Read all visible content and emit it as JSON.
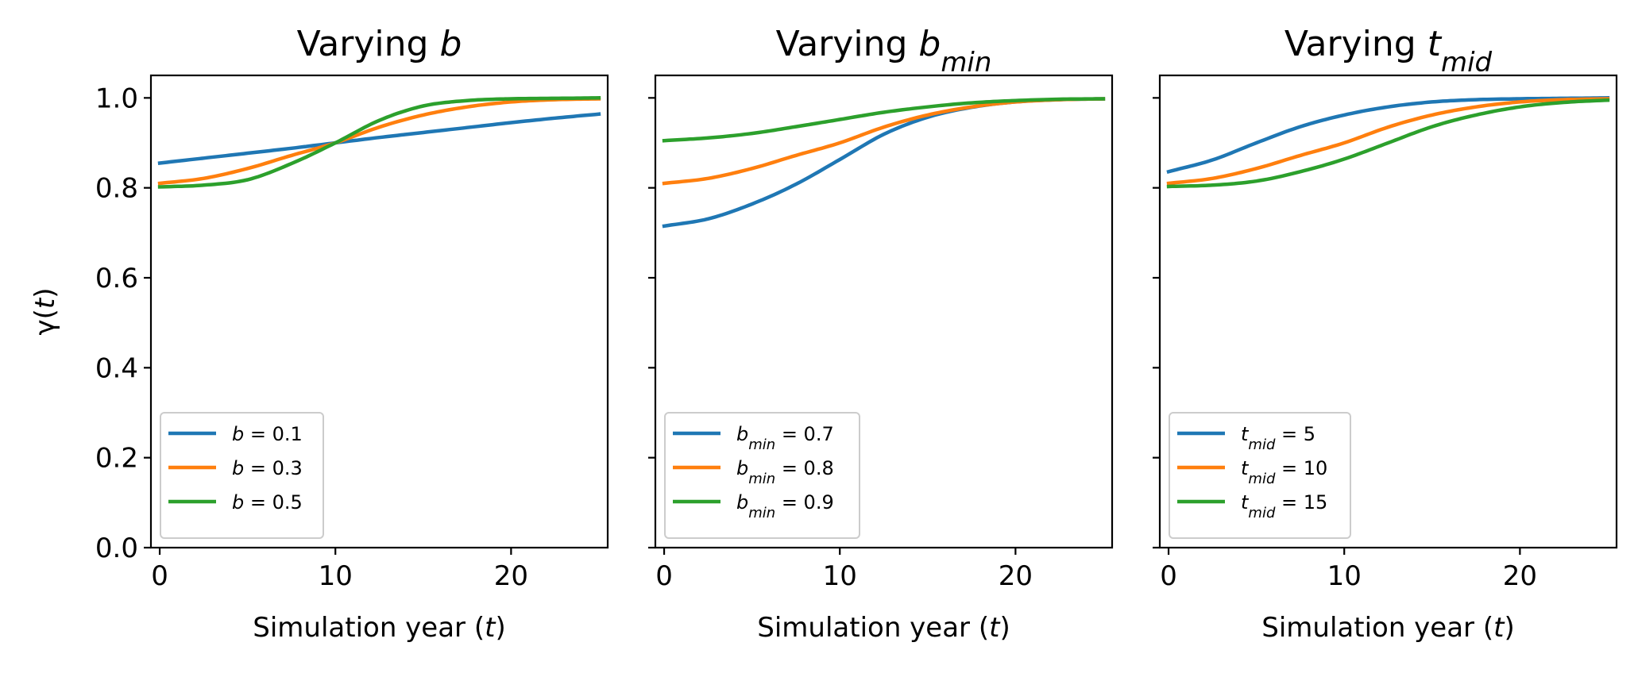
{
  "figure": {
    "ylabel": "γ(t)"
  },
  "colors": {
    "series_1": "#1f77b4",
    "series_2": "#ff7f0e",
    "series_3": "#2ca02c",
    "axis": "#000000",
    "legend_border": "#cccccc"
  },
  "chart_data": [
    {
      "type": "line",
      "title": "Varying b",
      "title_parts": [
        {
          "text": "Varying "
        },
        {
          "text": "b",
          "italic": true
        }
      ],
      "xlabel": "Simulation year (t)",
      "xlabel_parts": [
        {
          "text": "Simulation year ("
        },
        {
          "text": "t",
          "italic": true
        },
        {
          "text": ")"
        }
      ],
      "ylabel": "γ(t)",
      "xlim": [
        -0.5,
        25.5
      ],
      "ylim": [
        0.0,
        1.05
      ],
      "xticks": [
        0,
        10,
        20
      ],
      "yticks": [
        0.0,
        0.2,
        0.4,
        0.6,
        0.8,
        1.0
      ],
      "ytick_labels_shown": true,
      "grid": false,
      "legend_position": "lower-left",
      "x": [
        0,
        2.5,
        5,
        7.5,
        10,
        12.5,
        15,
        17.5,
        20,
        22.5,
        25
      ],
      "series": [
        {
          "name": "b = 0.1",
          "legend_parts": [
            {
              "text": "b",
              "italic": true
            },
            {
              "text": " = 0.1"
            }
          ],
          "color": "#1f77b4",
          "y": [
            0.855,
            0.866,
            0.877,
            0.888,
            0.9,
            0.912,
            0.923,
            0.934,
            0.945,
            0.955,
            0.964
          ]
        },
        {
          "name": "b = 0.3",
          "legend_parts": [
            {
              "text": "b",
              "italic": true
            },
            {
              "text": " = 0.3"
            }
          ],
          "color": "#ff7f0e",
          "y": [
            0.81,
            0.821,
            0.843,
            0.872,
            0.9,
            0.935,
            0.962,
            0.98,
            0.991,
            0.996,
            0.998
          ]
        },
        {
          "name": "b = 0.5",
          "legend_parts": [
            {
              "text": "b",
              "italic": true
            },
            {
              "text": " = 0.5"
            }
          ],
          "color": "#2ca02c",
          "y": [
            0.802,
            0.806,
            0.818,
            0.854,
            0.9,
            0.95,
            0.982,
            0.994,
            0.998,
            0.999,
            1.0
          ]
        }
      ]
    },
    {
      "type": "line",
      "title": "Varying bmin",
      "title_parts": [
        {
          "text": "Varying "
        },
        {
          "text": "b",
          "italic": true
        },
        {
          "text": "min",
          "italic": true,
          "sub": true
        }
      ],
      "xlabel": "Simulation year (t)",
      "xlabel_parts": [
        {
          "text": "Simulation year ("
        },
        {
          "text": "t",
          "italic": true
        },
        {
          "text": ")"
        }
      ],
      "xlim": [
        -0.5,
        25.5
      ],
      "ylim": [
        0.0,
        1.05
      ],
      "xticks": [
        0,
        10,
        20
      ],
      "yticks": [
        0.0,
        0.2,
        0.4,
        0.6,
        0.8,
        1.0
      ],
      "ytick_labels_shown": false,
      "grid": false,
      "legend_position": "lower-left",
      "x": [
        0,
        2.5,
        5,
        7.5,
        10,
        12.5,
        15,
        17.5,
        20,
        22.5,
        25
      ],
      "series": [
        {
          "name": "bmin = 0.7",
          "legend_parts": [
            {
              "text": "b",
              "italic": true
            },
            {
              "text": "min",
              "italic": true,
              "sub": true
            },
            {
              "text": " = 0.7"
            }
          ],
          "color": "#1f77b4",
          "y": [
            0.715,
            0.731,
            0.764,
            0.808,
            0.863,
            0.919,
            0.957,
            0.979,
            0.991,
            0.996,
            0.998
          ]
        },
        {
          "name": "bmin = 0.8",
          "legend_parts": [
            {
              "text": "b",
              "italic": true
            },
            {
              "text": "min",
              "italic": true,
              "sub": true
            },
            {
              "text": " = 0.8"
            }
          ],
          "color": "#ff7f0e",
          "y": [
            0.81,
            0.821,
            0.843,
            0.872,
            0.9,
            0.935,
            0.962,
            0.98,
            0.991,
            0.996,
            0.998
          ]
        },
        {
          "name": "bmin = 0.9",
          "legend_parts": [
            {
              "text": "b",
              "italic": true
            },
            {
              "text": "min",
              "italic": true,
              "sub": true
            },
            {
              "text": " = 0.9"
            }
          ],
          "color": "#2ca02c",
          "y": [
            0.905,
            0.911,
            0.921,
            0.936,
            0.952,
            0.968,
            0.98,
            0.989,
            0.994,
            0.997,
            0.998
          ]
        }
      ]
    },
    {
      "type": "line",
      "title": "Varying tmid",
      "title_parts": [
        {
          "text": "Varying "
        },
        {
          "text": "t",
          "italic": true
        },
        {
          "text": "mid",
          "italic": true,
          "sub": true
        }
      ],
      "xlabel": "Simulation year (t)",
      "xlabel_parts": [
        {
          "text": "Simulation year ("
        },
        {
          "text": "t",
          "italic": true
        },
        {
          "text": ")"
        }
      ],
      "xlim": [
        -0.5,
        25.5
      ],
      "ylim": [
        0.0,
        1.05
      ],
      "xticks": [
        0,
        10,
        20
      ],
      "yticks": [
        0.0,
        0.2,
        0.4,
        0.6,
        0.8,
        1.0
      ],
      "ytick_labels_shown": false,
      "grid": false,
      "legend_position": "lower-left",
      "x": [
        0,
        2.5,
        5,
        7.5,
        10,
        12.5,
        15,
        17.5,
        20,
        22.5,
        25
      ],
      "series": [
        {
          "name": "tmid = 5",
          "legend_parts": [
            {
              "text": "t",
              "italic": true
            },
            {
              "text": "mid",
              "italic": true,
              "sub": true
            },
            {
              "text": " = 5"
            }
          ],
          "color": "#1f77b4",
          "y": [
            0.836,
            0.862,
            0.9,
            0.936,
            0.962,
            0.98,
            0.991,
            0.996,
            0.998,
            0.999,
            1.0
          ]
        },
        {
          "name": "tmid = 10",
          "legend_parts": [
            {
              "text": "t",
              "italic": true
            },
            {
              "text": "mid",
              "italic": true,
              "sub": true
            },
            {
              "text": " = 10"
            }
          ],
          "color": "#ff7f0e",
          "y": [
            0.81,
            0.821,
            0.843,
            0.872,
            0.9,
            0.935,
            0.962,
            0.98,
            0.991,
            0.996,
            0.998
          ]
        },
        {
          "name": "tmid = 15",
          "legend_parts": [
            {
              "text": "t",
              "italic": true
            },
            {
              "text": "mid",
              "italic": true,
              "sub": true
            },
            {
              "text": " = 15"
            }
          ],
          "color": "#2ca02c",
          "y": [
            0.803,
            0.806,
            0.815,
            0.836,
            0.864,
            0.9,
            0.936,
            0.962,
            0.98,
            0.99,
            0.995
          ]
        }
      ]
    }
  ]
}
